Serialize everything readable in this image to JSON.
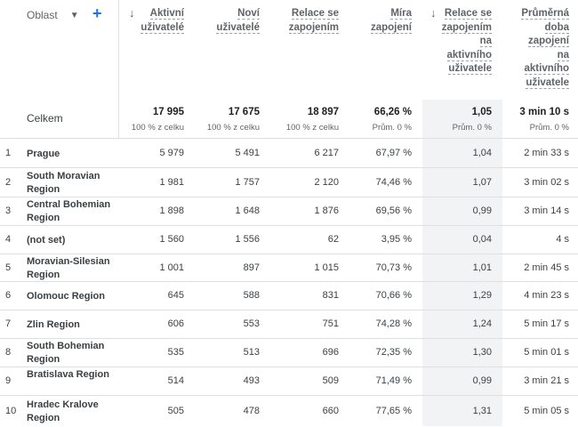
{
  "dimension_header": {
    "label": "Oblast",
    "caret_icon": "caret-down-icon",
    "add_icon": "plus-icon"
  },
  "columns": [
    {
      "label_lines": [
        "Aktivní",
        "uživatelé"
      ],
      "sorted": true
    },
    {
      "label_lines": [
        "Noví",
        "uživatelé"
      ],
      "sorted": false
    },
    {
      "label_lines": [
        "Relace se",
        "zapojením"
      ],
      "sorted": false
    },
    {
      "label_lines": [
        "Míra",
        "zapojení"
      ],
      "sorted": false
    },
    {
      "label_lines": [
        "Relace se",
        "zapojením",
        "na",
        "aktivního",
        "uživatele"
      ],
      "sorted": true
    },
    {
      "label_lines": [
        "Průměrná",
        "doba",
        "zapojení",
        "na",
        "aktivního",
        "uživatele"
      ],
      "sorted": false
    }
  ],
  "totals": {
    "label": "Celkem",
    "values": [
      "17 995",
      "17 675",
      "18 897",
      "66,26 %",
      "1,05",
      "3 min 10 s"
    ],
    "subs": [
      "100 % z celku",
      "100 % z celku",
      "100 % z celku",
      "Prům. 0 %",
      "Prům. 0 %",
      "Prům. 0 %"
    ]
  },
  "rows": [
    {
      "num": "1",
      "name": "Prague",
      "values": [
        "5 979",
        "5 491",
        "6 217",
        "67,97 %",
        "1,04",
        "2 min 33 s"
      ]
    },
    {
      "num": "2",
      "name": "South Moravian Region",
      "values": [
        "1 981",
        "1 757",
        "2 120",
        "74,46 %",
        "1,07",
        "3 min 02 s"
      ]
    },
    {
      "num": "3",
      "name": "Central Bohemian Region",
      "values": [
        "1 898",
        "1 648",
        "1 876",
        "69,56 %",
        "0,99",
        "3 min 14 s"
      ]
    },
    {
      "num": "4",
      "name": "(not set)",
      "values": [
        "1 560",
        "1 556",
        "62",
        "3,95 %",
        "0,04",
        "4 s"
      ]
    },
    {
      "num": "5",
      "name": "Moravian-Silesian Region",
      "values": [
        "1 001",
        "897",
        "1 015",
        "70,73 %",
        "1,01",
        "2 min 45 s"
      ]
    },
    {
      "num": "6",
      "name": "Olomouc Region",
      "values": [
        "645",
        "588",
        "831",
        "70,66 %",
        "1,29",
        "4 min 23 s"
      ]
    },
    {
      "num": "7",
      "name": "Zlin Region",
      "values": [
        "606",
        "553",
        "751",
        "74,28 %",
        "1,24",
        "5 min 17 s"
      ]
    },
    {
      "num": "8",
      "name": "South Bohemian Region",
      "values": [
        "535",
        "513",
        "696",
        "72,35 %",
        "1,30",
        "5 min 01 s"
      ]
    },
    {
      "num": "9",
      "name": "Bratislava Region",
      "values": [
        "514",
        "493",
        "509",
        "71,49 %",
        "0,99",
        "3 min 21 s"
      ]
    },
    {
      "num": "10",
      "name": "Hradec Kralove Region",
      "values": [
        "505",
        "478",
        "660",
        "77,65 %",
        "1,31",
        "5 min 05 s"
      ]
    }
  ]
}
